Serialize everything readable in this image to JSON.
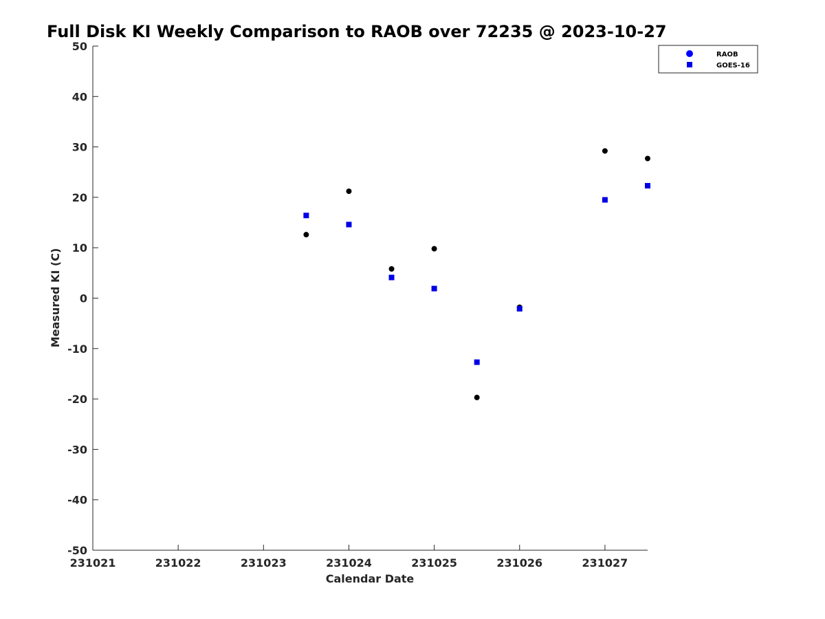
{
  "chart_data": {
    "type": "scatter",
    "title": "Full Disk KI Weekly Comparison to RAOB over 72235 @ 2023-10-27",
    "xlabel": "Calendar Date",
    "ylabel": "Measured KI (C)",
    "xlim": [
      231021,
      231027.5
    ],
    "ylim": [
      -50,
      50
    ],
    "x_ticks": [
      231021,
      231022,
      231023,
      231024,
      231025,
      231026,
      231027
    ],
    "x_tick_labels": [
      "231021",
      "231022",
      "231023",
      "231024",
      "231025",
      "231026",
      "231027"
    ],
    "y_ticks": [
      50,
      40,
      30,
      20,
      10,
      0,
      -10,
      -20,
      -30,
      -40,
      -50
    ],
    "y_tick_labels": [
      "50",
      "40",
      "30",
      "20",
      "10",
      "0",
      "-10",
      "-20",
      "-30",
      "-40",
      "-50"
    ],
    "grid": false,
    "legend_position": "top-right",
    "series": [
      {
        "name": "RAOB",
        "marker": "circle",
        "color": "#000000",
        "legend_color": "#0000ff",
        "x": [
          231023.5,
          231024,
          231024.5,
          231025,
          231025.5,
          231026,
          231027,
          231027.5
        ],
        "y": [
          12.6,
          21.2,
          5.8,
          9.8,
          -19.7,
          -1.8,
          29.2,
          27.7
        ]
      },
      {
        "name": "GOES-16",
        "marker": "square",
        "color": "#0000e6",
        "legend_color": "#0000e6",
        "x": [
          231023.5,
          231024,
          231024.5,
          231025,
          231025.5,
          231026,
          231027,
          231027.5
        ],
        "y": [
          16.4,
          14.6,
          4.1,
          1.9,
          -12.7,
          -2.1,
          19.5,
          22.3
        ]
      }
    ]
  }
}
